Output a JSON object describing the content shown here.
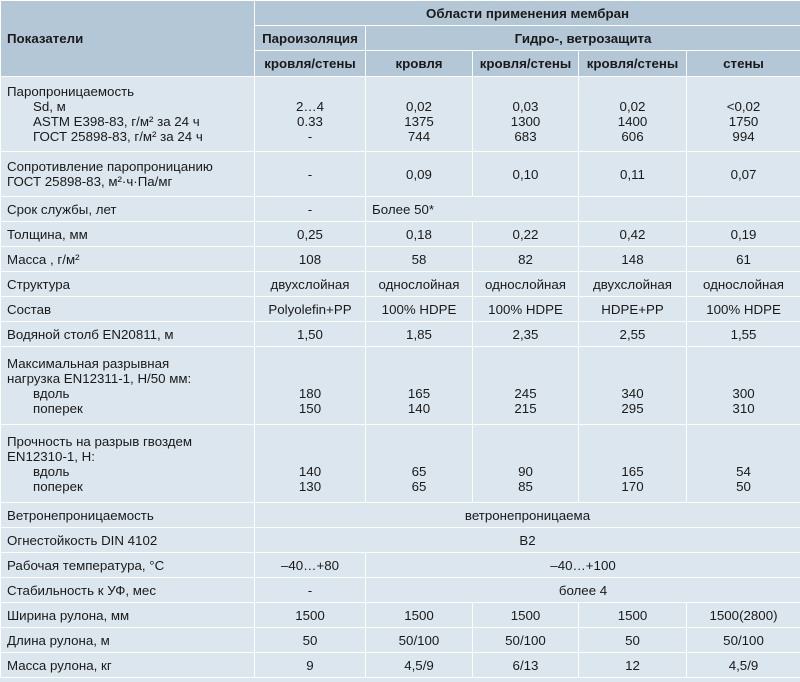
{
  "header": {
    "indicators": "Показатели",
    "areas": "Области применения мембран",
    "vapor_barrier": "Пароизоляция",
    "hydro_wind": "Гидро-, ветрозащита",
    "sub": [
      "кровля/стены",
      "кровля",
      "кровля/стены",
      "кровля/стены",
      "стены"
    ]
  },
  "rows": {
    "vapor": {
      "title": "Паропроницаемость",
      "sub_labels": "Sd, м\nASTM E398-83, г/м² за 24 ч\nГОСТ 25898-83, г/м² за 24 ч",
      "cells": [
        "2…4\n0.33\n-",
        "0,02\n1375\n744",
        "0,03\n1300\n683",
        "0,02\n1400\n606",
        "<0,02\n1750\n994"
      ]
    },
    "resistance": {
      "label": "Сопротивление паропроницанию\nГОСТ 25898-83, м²·ч·Па/мг",
      "cells": [
        "-",
        "0,09",
        "0,10",
        "0,11",
        "0,07"
      ]
    },
    "service": {
      "label": "Срок службы, лет",
      "cells": [
        "-",
        "Более 50*",
        "",
        "",
        ""
      ]
    },
    "thickness": {
      "label": "Толщина, мм",
      "cells": [
        "0,25",
        "0,18",
        "0,22",
        "0,42",
        "0,19"
      ]
    },
    "mass": {
      "label": "Масса , г/м²",
      "cells": [
        "108",
        "58",
        "82",
        "148",
        "61"
      ]
    },
    "structure": {
      "label": "Структура",
      "cells": [
        "двухслойная",
        "однослойная",
        "однослойная",
        "двухслойная",
        "однослойная"
      ]
    },
    "composition": {
      "label": "Состав",
      "cells": [
        "Polyolefin+PP",
        "100% HDPE",
        "100% HDPE",
        "HDPE+PP",
        "100% HDPE"
      ]
    },
    "water": {
      "label": "Водяной столб EN20811, м",
      "cells": [
        "1,50",
        "1,85",
        "2,35",
        "2,55",
        "1,55"
      ]
    },
    "tensile": {
      "label": "Максимальная разрывная\nнагрузка EN12311-1, Н/50 мм:",
      "sub_labels": "вдоль\nпоперек",
      "cells": [
        "180\n150",
        "165\n140",
        "245\n215",
        "340\n295",
        "300\n310"
      ]
    },
    "nail": {
      "label": "Прочность на разрыв гвоздем\nEN12310-1, Н:",
      "sub_labels": "вдоль\nпоперек",
      "cells": [
        "140\n130",
        "65\n65",
        "90\n85",
        "165\n170",
        "54\n50"
      ]
    },
    "wind": {
      "label": "Ветронепроницаемость",
      "value": "ветронепроницаема"
    },
    "fire": {
      "label": "Огнестойкость DIN 4102",
      "value": "B2"
    },
    "temp": {
      "label": "Рабочая температура, °С",
      "vb": "–40…+80",
      "value": "–40…+100"
    },
    "uv": {
      "label": "Стабильность к УФ, мес",
      "vb": "-",
      "value": "более 4"
    },
    "width": {
      "label": "Ширина рулона, мм",
      "cells": [
        "1500",
        "1500",
        "1500",
        "1500",
        "1500(2800)"
      ]
    },
    "length": {
      "label": "Длина рулона, м",
      "cells": [
        "50",
        "50/100",
        "50/100",
        "50",
        "50/100"
      ]
    },
    "roll_mass": {
      "label": "Масса рулона, кг",
      "cells": [
        "9",
        "4,5/9",
        "6/13",
        "12",
        "4,5/9"
      ]
    }
  }
}
